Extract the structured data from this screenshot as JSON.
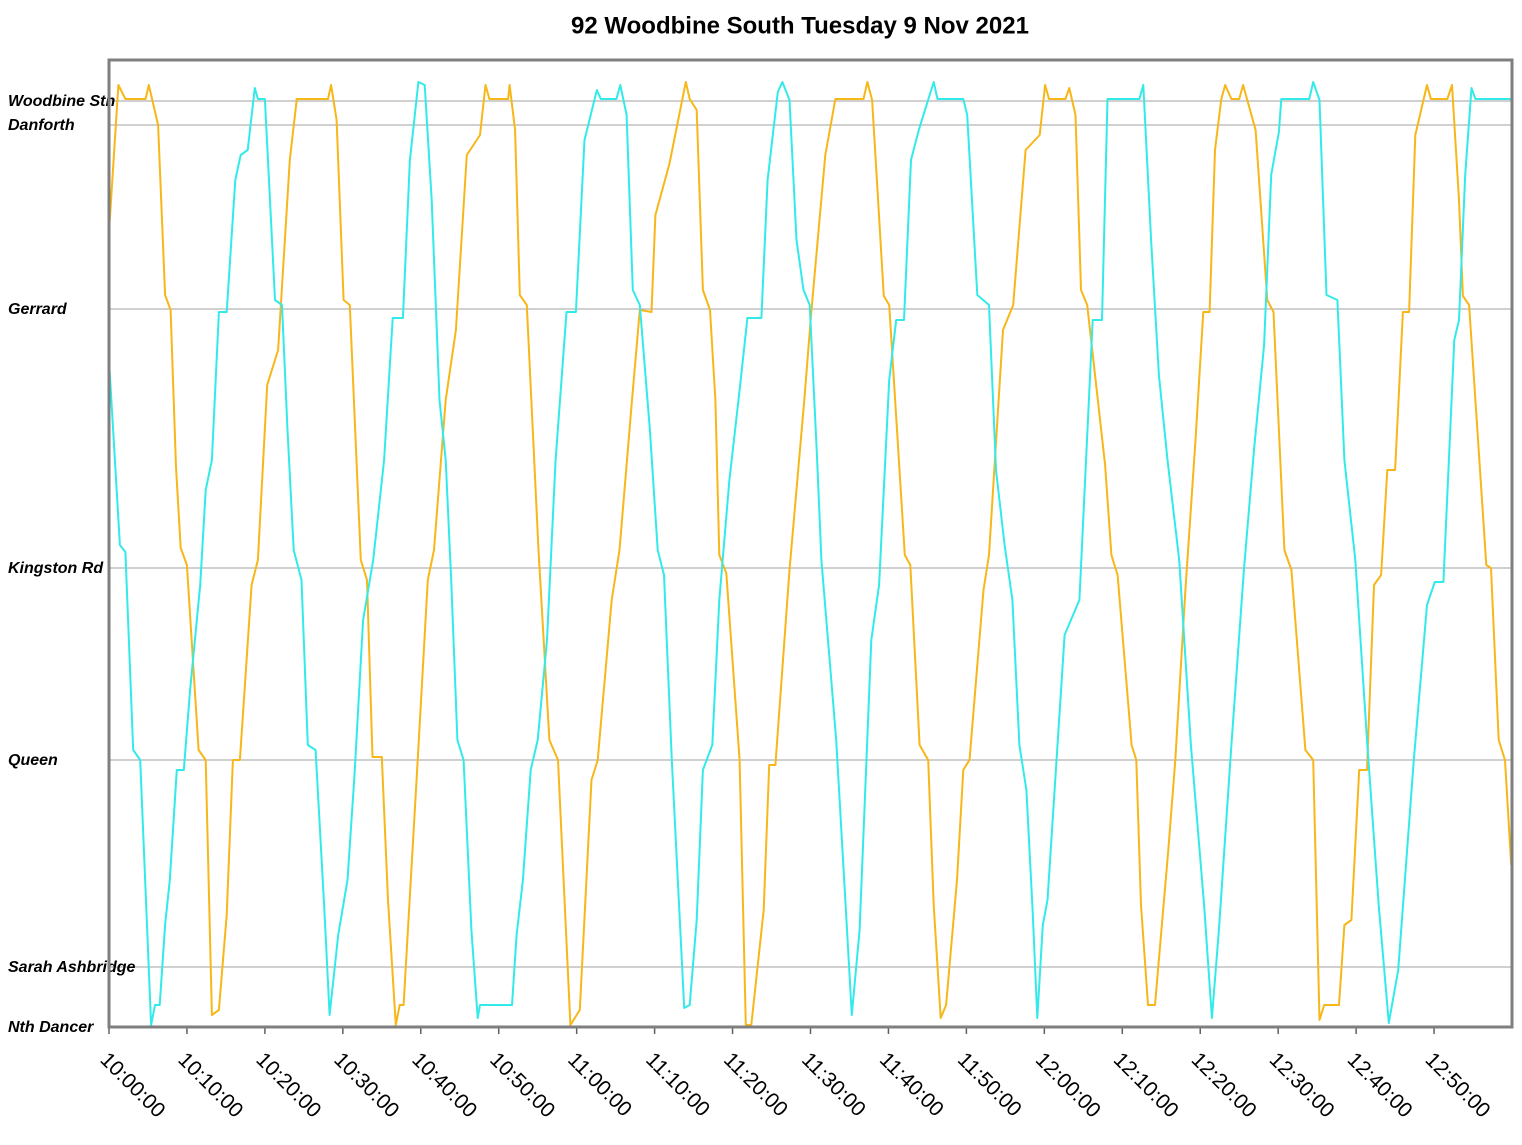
{
  "chart_data": {
    "type": "line",
    "title": "92 Woodbine South Tuesday 9 Nov 2021",
    "xlim": [
      0,
      180
    ],
    "xticks": [
      {
        "value": 0,
        "label": "10:00:00"
      },
      {
        "value": 10,
        "label": "10:10:00"
      },
      {
        "value": 20,
        "label": "10:20:00"
      },
      {
        "value": 30,
        "label": "10:30:00"
      },
      {
        "value": 40,
        "label": "10:40:00"
      },
      {
        "value": 50,
        "label": "10:50:00"
      },
      {
        "value": 60,
        "label": "11:00:00"
      },
      {
        "value": 70,
        "label": "11:10:00"
      },
      {
        "value": 80,
        "label": "11:20:00"
      },
      {
        "value": 90,
        "label": "11:30:00"
      },
      {
        "value": 100,
        "label": "11:40:00"
      },
      {
        "value": 110,
        "label": "11:50:00"
      },
      {
        "value": 120,
        "label": "12:00:00"
      },
      {
        "value": 130,
        "label": "12:10:00"
      },
      {
        "value": 140,
        "label": "12:20:00"
      },
      {
        "value": 150,
        "label": "12:30:00"
      },
      {
        "value": 160,
        "label": "12:40:00"
      },
      {
        "value": 170,
        "label": "12:50:00"
      }
    ],
    "ylim": [
      0,
      967
    ],
    "yticks": [
      {
        "value": 0,
        "label": "Nth Dancer"
      },
      {
        "value": 60,
        "label": "Sarah Ashbridge"
      },
      {
        "value": 267,
        "label": "Queen"
      },
      {
        "value": 459,
        "label": "Kingston Rd"
      },
      {
        "value": 718,
        "label": "Gerrard"
      },
      {
        "value": 902,
        "label": "Danforth"
      },
      {
        "value": 926,
        "label": "Woodbine Stn"
      }
    ],
    "grid": true,
    "series": [
      {
        "color": "#f7b718",
        "x": [
          0,
          1.2,
          2.1,
          4.7,
          5.1,
          6.3,
          7.2,
          7.9,
          8.6,
          9.2,
          10.0,
          11.5,
          12.4,
          13.2,
          14.1,
          15.1,
          15.9,
          16.8,
          18.3,
          19.1,
          20.3,
          21.7,
          23.2,
          24.1,
          28.1,
          28.5,
          29.2,
          30.1,
          30.9,
          32.3,
          33.1,
          33.8,
          35.0,
          35.8,
          36.8,
          37.3,
          37.8,
          39.6,
          40.9,
          41.7,
          43.2,
          44.5,
          45.9,
          47.6,
          48.3,
          48.8,
          51.2,
          51.4,
          52.1,
          52.7,
          53.6,
          55.1,
          56.5,
          57.6,
          58.5,
          59.2,
          60.4,
          61.9,
          62.7,
          64.5,
          65.5,
          67.1,
          68.1,
          69.6,
          70.1,
          71.9,
          74.0,
          74.5,
          75.4,
          76.2,
          77.1,
          77.8,
          78.3,
          79.2,
          80.9,
          81.7,
          82.4,
          84.0,
          84.7,
          85.5,
          87.3,
          89.2,
          90.1,
          91.9,
          93.2,
          96.8,
          97.3,
          97.9,
          99.4,
          100.1,
          102.1,
          102.8,
          104.0,
          105.1,
          105.8,
          106.7,
          107.4,
          108.8,
          109.6,
          110.4,
          112.2,
          112.9,
          114.7,
          116.0,
          117.6,
          119.4,
          120.1,
          120.6,
          122.7,
          123.2,
          124.0,
          124.7,
          125.5,
          127.8,
          128.6,
          129.4,
          131.2,
          131.8,
          132.4,
          133.3,
          134.2,
          135.9,
          136.8,
          138.1,
          139.4,
          140.4,
          141.2,
          141.9,
          142.7,
          143.2,
          144.0,
          145.0,
          145.5,
          147.1,
          148.6,
          149.4,
          150.8,
          151.7,
          153.5,
          154.5,
          155.3,
          155.9,
          157.8,
          158.5,
          159.4,
          160.4,
          161.4,
          162.3,
          163.2,
          164.0,
          165.0,
          166.0,
          166.8,
          167.6,
          169.1,
          169.6,
          171.7,
          172.3,
          173.2,
          173.7,
          174.5,
          176.7,
          177.3,
          178.3,
          179.1,
          179.9
        ],
        "values": [
          795,
          942,
          928,
          928,
          942,
          902,
          732,
          717,
          560,
          479,
          462,
          277,
          267,
          12,
          17,
          112,
          267,
          267,
          442,
          467,
          642,
          677,
          867,
          928,
          928,
          942,
          907,
          727,
          722,
          467,
          447,
          270,
          270,
          127,
          2,
          22,
          22,
          267,
          447,
          477,
          627,
          697,
          872,
          892,
          942,
          928,
          928,
          942,
          897,
          732,
          722,
          477,
          287,
          267,
          117,
          2,
          17,
          247,
          267,
          427,
          477,
          627,
          717,
          715,
          812,
          863,
          945,
          928,
          917,
          737,
          717,
          627,
          472,
          454,
          267,
          2,
          2,
          117,
          262,
          262,
          457,
          627,
          715,
          872,
          928,
          928,
          945,
          927,
          731,
          722,
          472,
          462,
          282,
          267,
          122,
          9,
          22,
          147,
          257,
          267,
          437,
          472,
          697,
          722,
          877,
          892,
          942,
          928,
          928,
          939,
          912,
          737,
          722,
          562,
          472,
          452,
          282,
          267,
          122,
          22,
          22,
          177,
          267,
          437,
          587,
          715,
          715,
          877,
          928,
          942,
          928,
          928,
          942,
          897,
          727,
          715,
          477,
          457,
          277,
          267,
          7,
          22,
          22,
          102,
          107,
          257,
          257,
          442,
          452,
          557,
          557,
          715,
          715,
          892,
          942,
          928,
          928,
          942,
          827,
          731,
          722,
          462,
          459,
          287,
          267,
          162
        ]
      },
      {
        "color": "#33eaea",
        "x": [
          0,
          1.4,
          2.1,
          3.1,
          4.0,
          4.9,
          5.4,
          5.9,
          6.5,
          7.2,
          7.8,
          8.7,
          9.6,
          10.4,
          11.7,
          12.4,
          13.2,
          14.1,
          15.1,
          16.2,
          16.9,
          17.8,
          18.7,
          19.1,
          20.0,
          21.3,
          22.2,
          22.9,
          23.7,
          24.7,
          25.5,
          26.5,
          27.6,
          28.3,
          29.4,
          30.6,
          31.5,
          32.6,
          33.9,
          35.3,
          36.4,
          37.7,
          38.6,
          39.7,
          40.5,
          41.4,
          42.4,
          43.2,
          43.9,
          44.7,
          45.5,
          46.5,
          47.3,
          47.6,
          51.7,
          52.3,
          53.1,
          54.1,
          55.0,
          56.2,
          57.3,
          58.7,
          59.9,
          61.0,
          62.6,
          63.1,
          65.1,
          65.6,
          66.4,
          67.2,
          68.1,
          69.4,
          70.4,
          71.2,
          72.2,
          73.1,
          73.8,
          74.5,
          75.4,
          76.2,
          77.4,
          78.3,
          79.6,
          80.9,
          81.9,
          83.7,
          84.5,
          85.8,
          86.4,
          87.3,
          88.2,
          89.1,
          89.9,
          90.8,
          91.4,
          93.3,
          94.5,
          95.3,
          96.3,
          97.8,
          98.8,
          100.1,
          101.0,
          102.0,
          102.9,
          103.9,
          105.8,
          106.3,
          109.6,
          110.1,
          111.4,
          112.9,
          113.8,
          114.9,
          115.9,
          116.8,
          117.7,
          118.5,
          119.1,
          119.8,
          120.4,
          122.6,
          124.5,
          126.2,
          127.4,
          128.1,
          132.2,
          132.7,
          133.7,
          134.7,
          135.8,
          137.3,
          138.8,
          140.5,
          141.5,
          142.4,
          144.0,
          145.6,
          146.9,
          148.2,
          149.1,
          150.1,
          150.4,
          154.0,
          154.5,
          155.3,
          156.2,
          157.6,
          158.5,
          159.9,
          161.4,
          162.9,
          164.2,
          165.4,
          167.4,
          169.1,
          170.1,
          171.2,
          172.6,
          173.2,
          174.0,
          174.8,
          175.3,
          179.9
        ],
        "values": [
          667,
          482,
          475,
          277,
          267,
          97,
          2,
          22,
          22,
          102,
          147,
          257,
          257,
          337,
          442,
          537,
          567,
          715,
          715,
          847,
          872,
          877,
          939,
          928,
          928,
          727,
          722,
          597,
          477,
          447,
          282,
          277,
          122,
          12,
          92,
          147,
          252,
          407,
          467,
          567,
          709,
          709,
          867,
          945,
          942,
          827,
          627,
          567,
          447,
          287,
          267,
          97,
          9,
          22,
          22,
          92,
          147,
          257,
          287,
          387,
          567,
          715,
          715,
          887,
          937,
          928,
          928,
          942,
          912,
          737,
          722,
          597,
          477,
          452,
          267,
          127,
          19,
          22,
          107,
          257,
          282,
          427,
          547,
          637,
          709,
          709,
          847,
          935,
          945,
          927,
          787,
          737,
          722,
          577,
          467,
          287,
          122,
          12,
          97,
          387,
          442,
          647,
          707,
          707,
          867,
          897,
          945,
          928,
          928,
          912,
          732,
          722,
          557,
          482,
          427,
          282,
          237,
          117,
          9,
          102,
          127,
          392,
          427,
          707,
          707,
          928,
          928,
          942,
          787,
          652,
          567,
          467,
          282,
          122,
          9,
          97,
          282,
          457,
          577,
          682,
          852,
          895,
          928,
          928,
          945,
          927,
          732,
          727,
          567,
          467,
          287,
          122,
          4,
          57,
          267,
          422,
          445,
          445,
          687,
          707,
          852,
          939,
          928,
          928
        ]
      }
    ]
  }
}
